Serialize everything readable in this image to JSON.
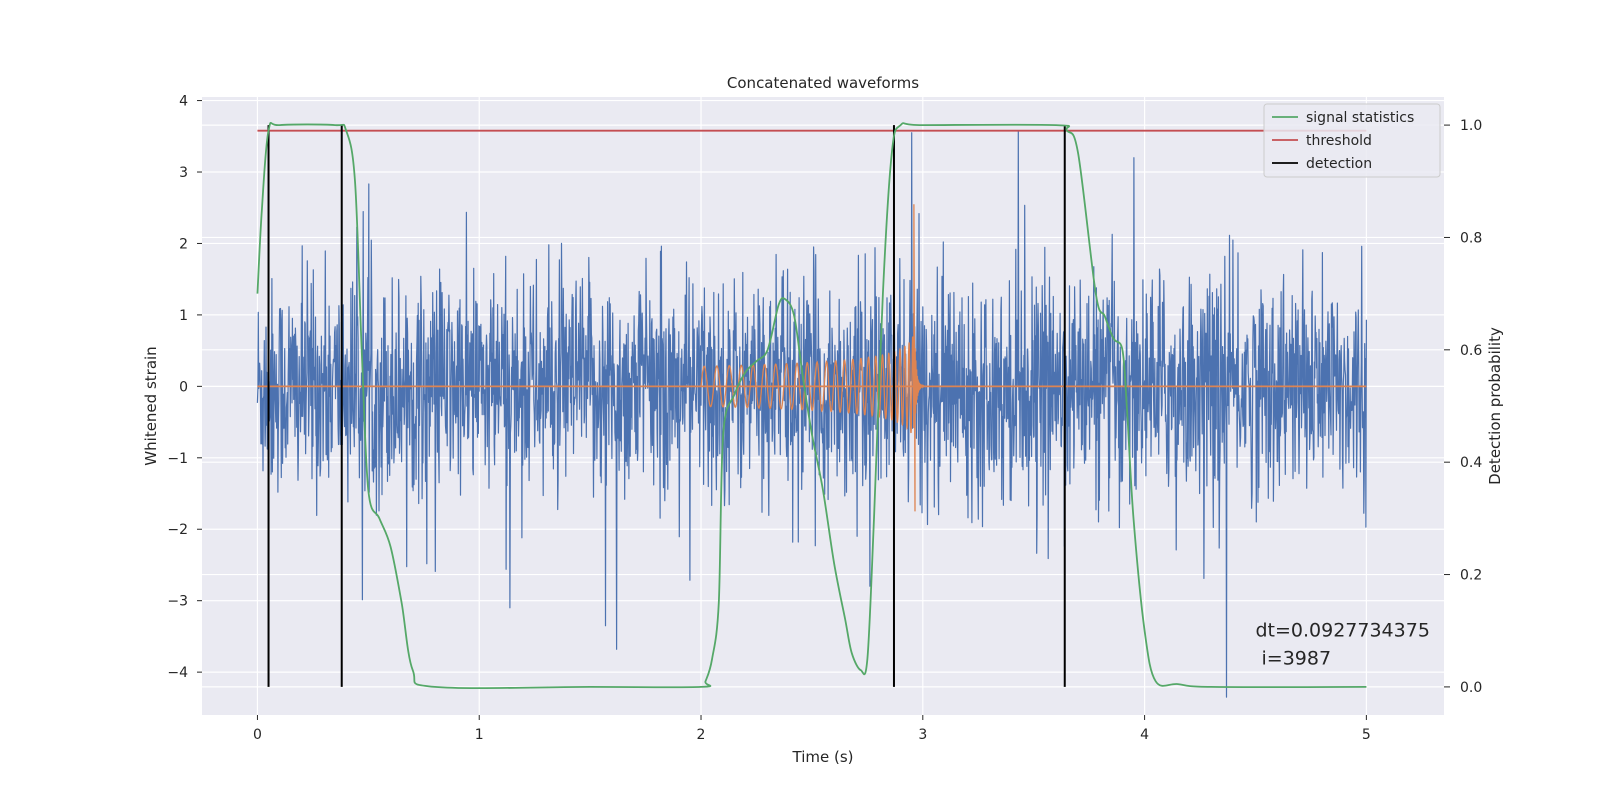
{
  "chart_data": {
    "type": "line",
    "title": "Concatenated waveforms",
    "xlabel": "Time (s)",
    "ylabel": "Whitened strain",
    "y2label": "Detection probability",
    "xlim": [
      -0.25,
      5.35
    ],
    "ylim": [
      -4.6,
      4.05
    ],
    "y2lim": [
      -0.05,
      1.05
    ],
    "x_ticks": [
      0,
      1,
      2,
      3,
      4,
      5
    ],
    "x_tick_labels": [
      "0",
      "1",
      "2",
      "3",
      "4",
      "5"
    ],
    "y_ticks": [
      4,
      3,
      2,
      1,
      0,
      -1,
      -2,
      -3,
      -4
    ],
    "y_tick_labels": [
      "4",
      "3",
      "2",
      "1",
      "0",
      "−1",
      "−2",
      "−3",
      "−4"
    ],
    "y2_ticks": [
      1.0,
      0.8,
      0.6,
      0.4,
      0.2,
      0.0
    ],
    "y2_tick_labels": [
      "1.0",
      "0.8",
      "0.6",
      "0.4",
      "0.2",
      "0.0"
    ],
    "grid": true,
    "legend_position": "top-right",
    "noise": {
      "x_range": [
        0,
        5
      ],
      "typical_amplitude": 1.2,
      "extremes": [
        {
          "x": 1.57,
          "y": -3.35
        },
        {
          "x": 1.62,
          "y": -3.68
        },
        {
          "x": 3.43,
          "y": 3.58
        },
        {
          "x": 4.37,
          "y": -4.35
        },
        {
          "x": 2.95,
          "y": 3.55
        }
      ]
    },
    "injection": {
      "x_range": [
        2.0,
        3.0
      ],
      "start_amplitude": 0.28,
      "peak_x": 2.96,
      "peak_y": 2.55,
      "min_y": -1.75
    },
    "series": [
      {
        "name": "signal statistics",
        "axis": "right",
        "x": [
          0.0,
          0.02,
          0.05,
          0.1,
          0.35,
          0.4,
          0.44,
          0.47,
          0.5,
          0.55,
          0.6,
          0.65,
          0.7,
          0.8,
          1.5,
          2.0,
          2.02,
          2.05,
          2.08,
          2.1,
          2.15,
          2.2,
          2.25,
          2.3,
          2.35,
          2.38,
          2.42,
          2.46,
          2.5,
          2.55,
          2.6,
          2.65,
          2.68,
          2.72,
          2.75,
          2.78,
          2.82,
          2.86,
          2.9,
          3.0,
          3.6,
          3.65,
          3.7,
          3.78,
          3.82,
          3.86,
          3.9,
          3.92,
          3.95,
          4.0,
          4.05,
          4.15,
          4.3,
          5.0
        ],
        "y": [
          0.7,
          0.85,
          0.99,
          1.0,
          1.0,
          0.99,
          0.9,
          0.6,
          0.35,
          0.3,
          0.25,
          0.15,
          0.03,
          0.0,
          0.0,
          0.0,
          0.01,
          0.05,
          0.15,
          0.45,
          0.52,
          0.56,
          0.58,
          0.6,
          0.68,
          0.69,
          0.66,
          0.55,
          0.45,
          0.35,
          0.22,
          0.12,
          0.06,
          0.03,
          0.05,
          0.3,
          0.7,
          0.95,
          1.0,
          1.0,
          1.0,
          0.99,
          0.95,
          0.7,
          0.66,
          0.62,
          0.6,
          0.5,
          0.3,
          0.1,
          0.01,
          0.005,
          0.0,
          0.0
        ]
      },
      {
        "name": "threshold",
        "axis": "right",
        "x": [
          0.0,
          5.0
        ],
        "y": [
          0.99,
          0.99
        ]
      }
    ],
    "detections": {
      "name": "detection",
      "x": [
        0.05,
        0.38,
        2.87,
        3.64
      ],
      "y_range": [
        0.0,
        1.0
      ]
    },
    "annotation": {
      "line1": "dt=0.0927734375",
      "line2": " i=3987",
      "x": 4.5,
      "y": -3.5
    },
    "colors": {
      "background": "#eaeaf2",
      "grid": "#ffffff",
      "noise": "#4c72b0",
      "injection": "#dd8452",
      "signal_statistics": "#55a868",
      "threshold": "#c44e52",
      "detection": "#000000",
      "text": "#262626"
    }
  }
}
